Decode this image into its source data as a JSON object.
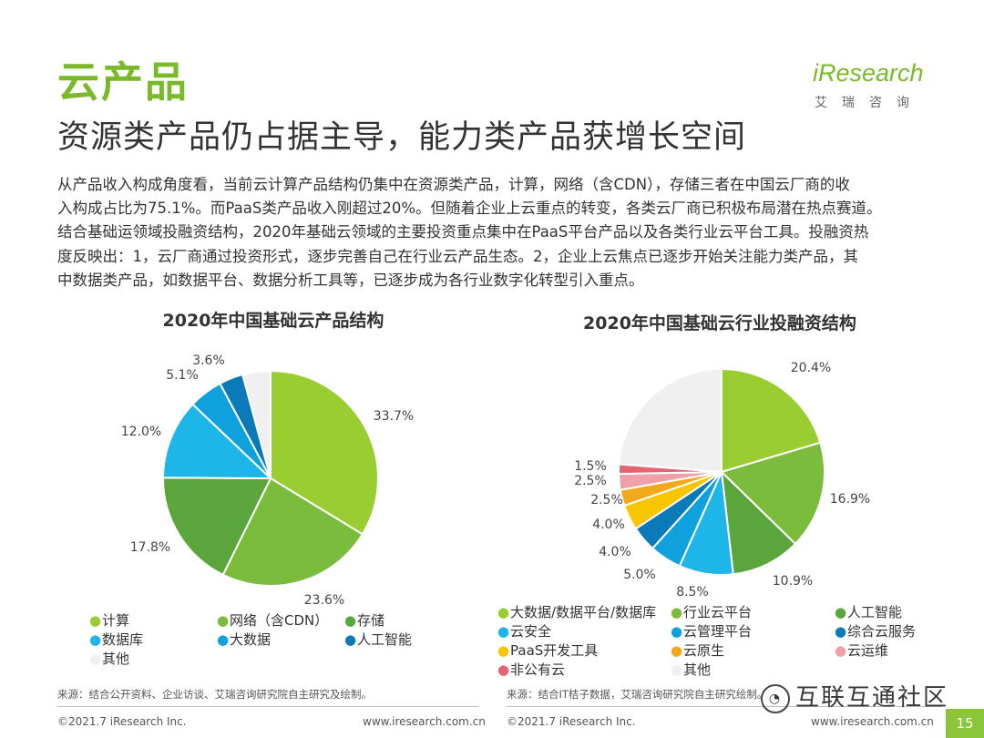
{
  "header": {
    "title": "云产品",
    "subtitle": "资源类产品仍占据主导，能力类产品获增长空间"
  },
  "logo": {
    "word": "iResearch",
    "cn": "艾瑞咨询"
  },
  "body": {
    "lines": [
      "从产品收入构成角度看，当前云计算产品结构仍集中在资源类产品，计算，网络（含CDN），存储三者在中国云厂商的收",
      "入构成占比为75.1%。而PaaS类产品收入刚超过20%。但随着企业上云重点的转变，各类云厂商已积极布局潜在热点赛道。",
      "结合基础运领域投融资结构，2020年基础云领域的主要投资重点集中在PaaS平台产品以及各类行业云平台工具。投融资热",
      "度反映出：1，云厂商通过投资形式，逐步完善自己在行业云产品生态。2，企业上云焦点已逐步开始关注能力类产品，其",
      "中数据类产品，如数据平台、数据分析工具等，已逐步成为各行业数字化转型引入重点。"
    ]
  },
  "chart_data": [
    {
      "type": "pie",
      "title": "2020年中国基础云产品结构",
      "categories": [
        "计算",
        "网络（含CDN）",
        "存储",
        "数据库",
        "大数据",
        "人工智能",
        "其他"
      ],
      "values": [
        33.7,
        23.6,
        17.8,
        12.0,
        5.1,
        3.6,
        4.2
      ],
      "value_labels": [
        "33.7%",
        "23.6%",
        "17.8%",
        "12.0%",
        "5.1%",
        "3.6%",
        ""
      ],
      "colors": [
        "#9acd32",
        "#7cbc3c",
        "#5aa63c",
        "#1eb5e8",
        "#0ea1dd",
        "#0b7ab9",
        "#f0f0f0"
      ],
      "legend_position": "bottom"
    },
    {
      "type": "pie",
      "title": "2020年中国基础云行业投融资结构",
      "categories": [
        "大数据/数据平台/数据库",
        "行业云平台",
        "人工智能",
        "云安全",
        "云管理平台",
        "综合云服务",
        "PaaS开发工具",
        "云原生",
        "云运维",
        "非公有云",
        "其他"
      ],
      "values": [
        20.4,
        16.9,
        10.9,
        8.5,
        5.0,
        4.0,
        4.0,
        2.5,
        2.5,
        1.5,
        23.8
      ],
      "value_labels": [
        "20.4%",
        "16.9%",
        "10.9%",
        "8.5%",
        "5.0%",
        "4.0%",
        "4.0%",
        "2.5%",
        "2.5%",
        "1.5%",
        ""
      ],
      "colors": [
        "#9acd32",
        "#7cbc3c",
        "#5aa63c",
        "#1eb5e8",
        "#0ea1dd",
        "#0b7ab9",
        "#f7c600",
        "#f4a81c",
        "#f0a0a8",
        "#e46474",
        "#f0f0f0"
      ],
      "legend_position": "bottom"
    }
  ],
  "sources": {
    "left": "来源：结合公开资料、企业访谈、艾瑞咨询研究院自主研究及绘制。",
    "right": "来源：结合IT桔子数据，艾瑞咨询研究院自主研究绘制。"
  },
  "footer": {
    "copyright": "©2021.7 iResearch Inc.",
    "url": "www.iresearch.com.cn",
    "page": "15"
  },
  "watermark": "互联互通社区"
}
